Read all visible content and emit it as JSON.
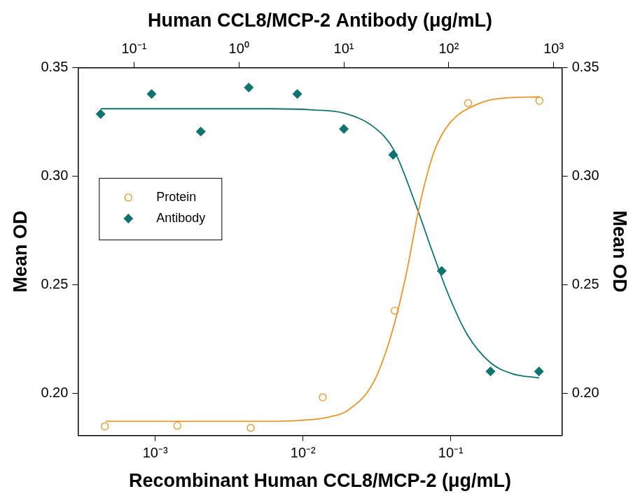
{
  "chart_data": {
    "type": "scatter",
    "x_label": "Recombinant Human CCL8/MCP-2 (μg/mL)",
    "x2_label": "Human CCL8/MCP-2 Antibody (μg/mL)",
    "y_label": "Mean OD",
    "y2_label": "Mean OD",
    "log": "x",
    "grid": false,
    "legend": "center left",
    "xlim": [
      0.00032,
      0.566
    ],
    "xticks": [
      {
        "value": 0.001,
        "label": "10⁻³"
      },
      {
        "value": 0.01,
        "label": "10⁻²"
      },
      {
        "value": 0.1,
        "label": "10⁻¹"
      }
    ],
    "x2lim": [
      0.0292,
      1202
    ],
    "x2ticks": [
      {
        "value": 0.1,
        "label": "10⁻¹"
      },
      {
        "value": 1,
        "label": "10⁰"
      },
      {
        "value": 10,
        "label": "10¹"
      },
      {
        "value": 100,
        "label": "10²"
      },
      {
        "value": 1000,
        "label": "10³"
      }
    ],
    "ylim": [
      0.1805,
      0.35
    ],
    "yticks": [
      {
        "value": 0.2,
        "label": "0.20"
      },
      0.25,
      {
        "value": 0.3,
        "label": "0.30"
      },
      0.35
    ],
    "y2lim": [
      0.1805,
      0.35
    ],
    "y2ticks": [
      {
        "value": 0.2,
        "label": "0.20"
      },
      0.25,
      {
        "value": 0.3,
        "label": "0.30"
      },
      0.35
    ],
    "series": [
      {
        "name": "Protein",
        "color": "#e8962a",
        "marker": "open circle",
        "line_style": "solid",
        "axis": "x",
        "x": [
          0.000456,
          0.00141,
          0.00443,
          0.0136,
          0.0418,
          0.131,
          0.398
        ],
        "values": [
          0.1847,
          0.185,
          0.184,
          0.1981,
          0.238,
          0.3336,
          0.3347
        ],
        "fit_x": [
          0.00046,
          0.005,
          0.01,
          0.015,
          0.02,
          0.03,
          0.04,
          0.05,
          0.06,
          0.07,
          0.08,
          0.1,
          0.15,
          0.2,
          0.4
        ],
        "fit_values": [
          0.187,
          0.187,
          0.1875,
          0.189,
          0.192,
          0.205,
          0.228,
          0.255,
          0.283,
          0.302,
          0.314,
          0.325,
          0.333,
          0.3355,
          0.3365
        ]
      },
      {
        "name": "Antibody",
        "color": "#0f7370",
        "marker": "diamond",
        "line_style": "solid",
        "axis": "x2",
        "x": [
          0.048,
          0.147,
          0.433,
          1.24,
          3.6,
          10.0,
          29.5,
          85.7,
          250,
          725
        ],
        "values": [
          0.3286,
          0.3378,
          0.3205,
          0.3408,
          0.3378,
          0.3217,
          0.3098,
          0.2563,
          0.21,
          0.21
        ],
        "fit_x": [
          0.048,
          0.5,
          2,
          5,
          10,
          20,
          30,
          50,
          70,
          100,
          150,
          250,
          400,
          725
        ],
        "fit_values": [
          0.331,
          0.331,
          0.331,
          0.3305,
          0.329,
          0.322,
          0.312,
          0.285,
          0.265,
          0.245,
          0.227,
          0.214,
          0.209,
          0.207
        ]
      }
    ]
  }
}
